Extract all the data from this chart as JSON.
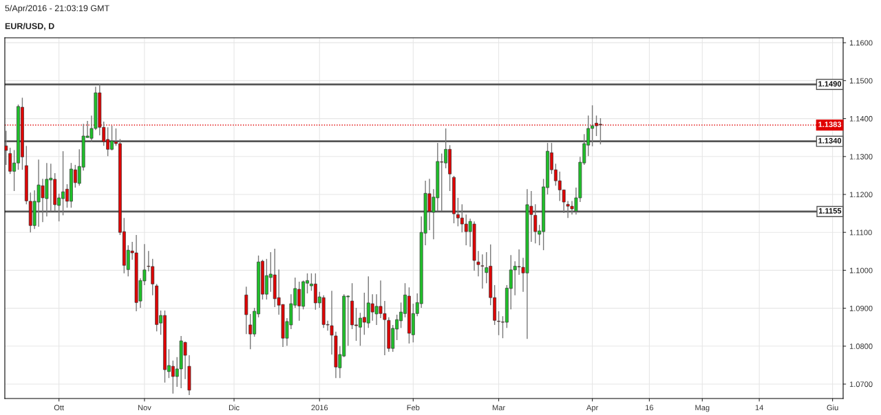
{
  "chart_data": {
    "type": "candlestick",
    "title": "EUR/USD, D",
    "subtitle": "5/Apr/2016 - 21:03:19 GMT",
    "categories": [
      null,
      null,
      null,
      null,
      null,
      null,
      null,
      null,
      null,
      null,
      null,
      null,
      null,
      "Ott",
      null,
      null,
      null,
      null,
      null,
      null,
      null,
      null,
      null,
      null,
      null,
      null,
      null,
      null,
      null,
      null,
      null,
      null,
      null,
      null,
      "Nov",
      null,
      null,
      null,
      null,
      null,
      null,
      null,
      null,
      null,
      null,
      null,
      null,
      null,
      null,
      null,
      null,
      null,
      null,
      null,
      null,
      null,
      "Dic",
      null,
      null,
      null,
      null,
      null,
      null,
      null,
      null,
      null,
      null,
      null,
      null,
      null,
      null,
      null,
      null,
      null,
      null,
      null,
      null,
      "2016",
      null,
      null,
      null,
      null,
      null,
      null,
      null,
      null,
      null,
      null,
      null,
      null,
      null,
      null,
      null,
      null,
      null,
      null,
      null,
      null,
      null,
      null,
      "Feb",
      null,
      null,
      null,
      null,
      null,
      null,
      null,
      null,
      null,
      null,
      null,
      null,
      null,
      null,
      null,
      null,
      null,
      null,
      null,
      null,
      "Mar",
      null,
      null,
      null,
      null,
      null,
      null,
      null,
      null,
      null,
      null,
      null,
      null,
      null,
      null,
      null,
      null,
      null,
      null,
      null,
      null,
      null,
      null,
      "Apr",
      null,
      null,
      null,
      null,
      null,
      null,
      null,
      null,
      null,
      null,
      null,
      null,
      null,
      "16",
      null,
      null,
      null,
      null,
      null,
      null,
      null,
      null,
      null,
      null,
      null,
      null,
      "Mag",
      null,
      null,
      null,
      null,
      null,
      null,
      null,
      null,
      null,
      null,
      null,
      null,
      null,
      "14",
      null,
      null,
      null,
      null,
      null,
      null,
      null,
      null,
      null,
      null,
      null,
      null,
      null,
      null,
      null,
      null,
      null,
      "Giu",
      null,
      null
    ],
    "ohlc": [
      [
        1.1328,
        1.1368,
        1.1278,
        1.1316
      ],
      [
        1.1308,
        1.1323,
        1.1254,
        1.1261
      ],
      [
        1.1261,
        1.1317,
        1.1209,
        1.1283
      ],
      [
        1.1283,
        1.1437,
        1.1265,
        1.1432
      ],
      [
        1.143,
        1.1455,
        1.1265,
        1.1299
      ],
      [
        1.1276,
        1.1328,
        1.1174,
        1.1183
      ],
      [
        1.1182,
        1.1205,
        1.11,
        1.1118
      ],
      [
        1.1118,
        1.1211,
        1.1109,
        1.1182
      ],
      [
        1.118,
        1.1292,
        1.1115,
        1.1225
      ],
      [
        1.1223,
        1.1241,
        1.1127,
        1.1191
      ],
      [
        1.1189,
        1.1283,
        1.1142,
        1.124
      ],
      [
        1.1238,
        1.1281,
        1.1155,
        1.1243
      ],
      [
        1.124,
        1.1256,
        1.1155,
        1.1173
      ],
      [
        1.1171,
        1.1202,
        1.1129,
        1.1191
      ],
      [
        1.1189,
        1.1314,
        1.1145,
        1.1207
      ],
      [
        1.1214,
        1.1227,
        1.1165,
        1.1182
      ],
      [
        1.1182,
        1.1283,
        1.1165,
        1.1267
      ],
      [
        1.1265,
        1.1278,
        1.1218,
        1.1231
      ],
      [
        1.1229,
        1.1319,
        1.1223,
        1.1274
      ],
      [
        1.1272,
        1.1386,
        1.1263,
        1.1354
      ],
      [
        1.135,
        1.1394,
        1.135,
        1.1354
      ],
      [
        1.1348,
        1.1408,
        1.1339,
        1.1374
      ],
      [
        1.1374,
        1.1484,
        1.137,
        1.1468
      ],
      [
        1.1468,
        1.1491,
        1.1356,
        1.1377
      ],
      [
        1.1377,
        1.1392,
        1.1328,
        1.1339
      ],
      [
        1.1345,
        1.1377,
        1.1301,
        1.1319
      ],
      [
        1.1319,
        1.1381,
        1.1316,
        1.1341
      ],
      [
        1.1339,
        1.1374,
        1.1328,
        1.1334
      ],
      [
        1.1334,
        1.1346,
        1.1093,
        1.11
      ],
      [
        1.1102,
        1.1138,
        1.0992,
        1.1013
      ],
      [
        1.1002,
        1.1066,
        1.0984,
        1.1053
      ],
      [
        1.1051,
        1.1075,
        1.1028,
        1.1046
      ],
      [
        1.1046,
        1.1093,
        1.0892,
        1.0915
      ],
      [
        1.0919,
        1.0979,
        1.0901,
        1.0973
      ],
      [
        1.0972,
        1.1069,
        1.0961,
        1.1001
      ],
      [
        1.1011,
        1.1051,
        1.0997,
        1.101
      ],
      [
        1.101,
        1.103,
        1.0934,
        1.0964
      ],
      [
        1.0959,
        1.0964,
        1.0839,
        1.0857
      ],
      [
        1.0861,
        1.0894,
        1.083,
        1.0881
      ],
      [
        1.0881,
        1.0894,
        1.0704,
        1.0738
      ],
      [
        1.0733,
        1.0792,
        1.0716,
        1.0749
      ],
      [
        1.0747,
        1.0762,
        1.0675,
        1.072
      ],
      [
        1.072,
        1.0771,
        1.0693,
        1.074
      ],
      [
        1.074,
        1.0827,
        1.0689,
        1.0814
      ],
      [
        1.081,
        1.0812,
        1.0713,
        1.0776
      ],
      [
        1.0747,
        1.0776,
        1.0671,
        1.0684
      ],
      null,
      null,
      null,
      null,
      null,
      null,
      null,
      null,
      null,
      null,
      null,
      null,
      null,
      [
        1.0935,
        1.0957,
        1.0832,
        1.0883
      ],
      [
        1.0856,
        1.0885,
        1.0792,
        1.0832
      ],
      [
        1.0832,
        1.0901,
        1.0825,
        1.0892
      ],
      [
        1.0885,
        1.1039,
        1.0876,
        1.1022
      ],
      [
        1.1024,
        1.1028,
        1.0923,
        1.0937
      ],
      [
        1.0937,
        1.103,
        1.0923,
        1.0986
      ],
      [
        1.0981,
        1.1048,
        1.0943,
        1.099
      ],
      [
        1.0988,
        1.1057,
        1.0903,
        1.0925
      ],
      [
        1.0928,
        1.1002,
        1.0883,
        1.0908
      ],
      [
        1.091,
        1.091,
        1.0798,
        1.0821
      ],
      [
        1.0821,
        1.0874,
        1.0801,
        1.0865
      ],
      [
        1.0856,
        1.0937,
        1.0845,
        1.0912
      ],
      [
        1.0908,
        1.0981,
        1.0901,
        1.0952
      ],
      [
        1.095,
        1.097,
        1.0867,
        1.0906
      ],
      [
        1.0905,
        1.0973,
        1.0897,
        1.097
      ],
      [
        1.0966,
        1.0992,
        1.0939,
        1.0973
      ],
      [
        1.0959,
        1.0992,
        1.0946,
        1.0964
      ],
      [
        1.0964,
        1.0992,
        1.0896,
        1.0914
      ],
      [
        1.0914,
        1.0943,
        1.0901,
        1.093
      ],
      [
        1.0928,
        1.0934,
        1.0848,
        1.0857
      ],
      [
        1.0857,
        1.0867,
        1.0841,
        1.0856
      ],
      [
        1.0854,
        1.0946,
        1.0778,
        1.0829
      ],
      [
        1.0827,
        1.0838,
        1.0716,
        1.0745
      ],
      [
        1.0743,
        1.08,
        1.0716,
        1.0778
      ],
      [
        1.0774,
        1.0937,
        1.0771,
        1.0932
      ],
      [
        1.093,
        1.0934,
        1.0801,
        1.0932
      ],
      [
        1.0919,
        1.0966,
        1.0845,
        1.0856
      ],
      [
        1.0856,
        1.0901,
        1.0814,
        1.0854
      ],
      [
        1.085,
        1.0888,
        1.0801,
        1.0874
      ],
      [
        1.0876,
        1.0941,
        1.083,
        1.0863
      ],
      [
        1.0861,
        1.0984,
        1.0848,
        1.0914
      ],
      [
        1.0912,
        1.0937,
        1.0867,
        1.089
      ],
      [
        1.0885,
        1.0937,
        1.0856,
        1.0905
      ],
      [
        1.0905,
        1.0973,
        1.0874,
        1.0886
      ],
      [
        1.0886,
        1.0919,
        1.0776,
        1.087
      ],
      [
        1.0868,
        1.0876,
        1.0785,
        1.0794
      ],
      [
        1.0794,
        1.0856,
        1.0785,
        1.0847
      ],
      [
        1.0845,
        1.0883,
        1.0816,
        1.087
      ],
      [
        1.0867,
        1.0915,
        1.0848,
        1.089
      ],
      [
        1.0886,
        1.0966,
        1.0876,
        1.0935
      ],
      [
        1.0932,
        1.0955,
        1.0807,
        1.0834
      ],
      [
        1.083,
        1.0912,
        1.081,
        1.0886
      ],
      [
        1.0886,
        1.0939,
        1.0879,
        1.0915
      ],
      [
        1.0912,
        1.1142,
        1.0901,
        1.11
      ],
      [
        1.1098,
        1.1236,
        1.1066,
        1.1203
      ],
      [
        1.1202,
        1.1241,
        1.1106,
        1.1155
      ],
      [
        1.1153,
        1.1214,
        1.1082,
        1.1193
      ],
      [
        1.1191,
        1.1336,
        1.1156,
        1.1287
      ],
      [
        1.1286,
        1.1308,
        1.1156,
        1.1285
      ],
      [
        1.1283,
        1.1374,
        1.1269,
        1.1319
      ],
      [
        1.1319,
        1.133,
        1.1209,
        1.1254
      ],
      [
        1.1245,
        1.1249,
        1.1124,
        1.1149
      ],
      [
        1.1147,
        1.1191,
        1.1116,
        1.1138
      ],
      [
        1.1138,
        1.1174,
        1.11,
        1.1122
      ],
      [
        1.1122,
        1.1147,
        1.1066,
        1.1102
      ],
      [
        1.1102,
        1.1136,
        1.1062,
        1.1129
      ],
      [
        1.1122,
        1.1129,
        1.0999,
        1.1026
      ],
      [
        1.1022,
        1.1051,
        1.0984,
        1.1015
      ],
      [
        1.1012,
        1.1042,
        1.0952,
        1.1011
      ],
      [
        1.0994,
        1.1048,
        1.0966,
        1.1007
      ],
      [
        1.1011,
        1.1068,
        1.0908,
        1.0928
      ],
      [
        1.0928,
        1.0961,
        1.0856,
        1.0868
      ],
      [
        1.0866,
        1.0892,
        1.0829,
        1.0865
      ],
      [
        1.0864,
        1.0879,
        1.0821,
        1.0863
      ],
      [
        1.0863,
        1.0961,
        1.0848,
        1.0953
      ],
      [
        1.0952,
        1.104,
        1.0897,
        1.1001
      ],
      [
        1.1001,
        1.1024,
        1.0934,
        1.1011
      ],
      [
        1.101,
        1.1055,
        1.0988,
        1.1009
      ],
      [
        1.1008,
        1.1033,
        1.0943,
        1.0993
      ],
      [
        1.0993,
        1.1214,
        1.0819,
        1.1173
      ],
      [
        1.1169,
        1.1209,
        1.1075,
        1.1147
      ],
      [
        1.1145,
        1.1174,
        1.1071,
        1.1102
      ],
      [
        1.1095,
        1.112,
        1.1066,
        1.1104
      ],
      [
        1.1102,
        1.1241,
        1.1053,
        1.122
      ],
      [
        1.1218,
        1.1336,
        1.12,
        1.1314
      ],
      [
        1.131,
        1.1336,
        1.1254,
        1.1265
      ],
      [
        1.1265,
        1.1281,
        1.1223,
        1.1236
      ],
      [
        1.1236,
        1.126,
        1.1183,
        1.1212
      ],
      [
        1.1212,
        1.1212,
        1.1151,
        1.118
      ],
      [
        1.1174,
        1.1183,
        1.1138,
        1.1169
      ],
      [
        1.1169,
        1.1183,
        1.1147,
        1.1162
      ],
      [
        1.1156,
        1.1218,
        1.1147,
        1.1191
      ],
      [
        1.1191,
        1.1299,
        1.118,
        1.1285
      ],
      [
        1.1283,
        1.1359,
        1.1278,
        1.1334
      ],
      [
        1.133,
        1.1408,
        1.1301,
        1.1374
      ],
      [
        1.1374,
        1.1435,
        1.1327,
        1.1381
      ],
      [
        1.1388,
        1.1408,
        1.1354,
        1.1381
      ],
      [
        1.1385,
        1.1401,
        1.1332,
        1.1383
      ],
      null,
      null,
      null,
      null,
      null,
      null,
      null,
      null,
      null,
      null,
      null,
      null,
      null,
      null,
      null,
      null,
      null,
      null,
      null,
      null,
      null,
      null,
      null,
      null,
      null,
      null,
      null,
      null,
      null,
      null,
      null,
      null,
      null,
      null,
      null,
      null,
      null,
      null,
      null,
      null,
      null,
      null,
      null,
      null,
      null,
      null,
      null,
      null,
      null,
      null,
      null,
      null,
      null,
      null,
      null,
      null,
      null,
      null,
      null
    ],
    "colors": [
      "#e00000",
      "#e00000",
      "#1fc12a",
      "#1fc12a",
      "#e00000",
      "#e00000",
      "#e00000",
      "#1fc12a",
      "#1fc12a",
      "#e00000",
      "#1fc12a",
      "#1fc12a",
      "#e00000",
      "#1fc12a",
      "#1fc12a",
      "#e00000",
      "#1fc12a",
      "#e00000",
      "#1fc12a",
      "#1fc12a",
      "#1fc12a",
      "#1fc12a",
      "#1fc12a",
      "#e00000",
      "#e00000",
      "#e00000",
      "#1fc12a",
      "#e00000",
      "#e00000",
      "#e00000",
      "#1fc12a",
      "#e00000",
      "#e00000",
      "#1fc12a",
      "#1fc12a",
      "#e00000",
      "#e00000",
      "#e00000",
      "#1fc12a",
      "#e00000",
      "#1fc12a",
      "#e00000",
      "#1fc12a",
      "#1fc12a",
      "#e00000",
      "#e00000",
      null,
      null,
      null,
      null,
      null,
      null,
      null,
      null,
      null,
      null,
      null,
      null,
      null,
      "#e00000",
      "#e00000",
      "#1fc12a",
      "#1fc12a",
      "#e00000",
      "#1fc12a",
      "#1fc12a",
      "#e00000",
      "#e00000",
      "#e00000",
      "#1fc12a",
      "#1fc12a",
      "#1fc12a",
      "#e00000",
      "#1fc12a",
      "#1fc12a",
      "#1fc12a",
      "#e00000",
      "#1fc12a",
      "#e00000",
      "#e00000",
      "#e00000",
      "#e00000",
      "#1fc12a",
      "#1fc12a",
      "#1fc12a",
      "#e00000",
      "#e00000",
      "#1fc12a",
      "#e00000",
      "#1fc12a",
      "#e00000",
      "#1fc12a",
      "#e00000",
      "#e00000",
      "#e00000",
      "#1fc12a",
      "#1fc12a",
      "#1fc12a",
      "#1fc12a",
      "#e00000",
      "#1fc12a",
      "#1fc12a",
      "#1fc12a",
      "#1fc12a",
      "#e00000",
      "#1fc12a",
      "#1fc12a",
      "#e00000",
      "#1fc12a",
      "#e00000",
      "#e00000",
      "#e00000",
      "#e00000",
      "#e00000",
      "#1fc12a",
      "#e00000",
      "#e00000",
      "#e00000",
      "#1fc12a",
      "#e00000",
      "#e00000",
      "#e00000",
      "#e00000",
      "#1fc12a",
      "#1fc12a",
      "#1fc12a",
      "#e00000",
      "#e00000",
      "#1fc12a",
      "#e00000",
      "#e00000",
      "#1fc12a",
      "#1fc12a",
      "#1fc12a",
      "#e00000",
      "#e00000",
      "#e00000",
      "#e00000",
      "#e00000",
      "#e00000",
      "#1fc12a",
      "#1fc12a",
      "#1fc12a",
      "#1fc12a",
      "#1fc12a",
      "#e00000",
      "#e00000",
      null,
      null,
      null,
      null,
      null,
      null,
      null,
      null,
      null,
      null,
      null,
      null,
      null,
      null,
      null,
      null,
      null,
      null,
      null,
      null,
      null,
      null,
      null,
      null,
      null,
      null,
      null,
      null,
      null,
      null,
      null,
      null,
      null,
      null,
      null,
      null,
      null,
      null,
      null,
      null,
      null,
      null,
      null,
      null,
      null,
      null,
      null,
      null,
      null,
      null,
      null,
      null,
      null,
      null,
      null,
      null,
      null,
      null,
      null
    ],
    "ylim": [
      1.0662,
      1.1613
    ],
    "yticks": [
      {
        "value": 1.07,
        "label": "1.0700"
      },
      {
        "value": 1.08,
        "label": "1.0800"
      },
      {
        "value": 1.09,
        "label": "1.0900"
      },
      {
        "value": 1.1,
        "label": "1.1000"
      },
      {
        "value": 1.11,
        "label": "1.1100"
      },
      {
        "value": 1.12,
        "label": "1.1200"
      },
      {
        "value": 1.13,
        "label": "1.1300"
      },
      {
        "value": 1.14,
        "label": "1.1400"
      },
      {
        "value": 1.15,
        "label": "1.1500"
      },
      {
        "value": 1.16,
        "label": "1.1600"
      }
    ],
    "ref_lines": [
      {
        "axis": "y",
        "value": 1.149,
        "label": "1.1490",
        "color": "#555555",
        "line_style": "solid"
      },
      {
        "axis": "y",
        "value": 1.134,
        "label": "1.1340",
        "color": "#555555",
        "line_style": "solid"
      },
      {
        "axis": "y",
        "value": 1.1155,
        "label": "1.1155",
        "color": "#555555",
        "line_style": "solid"
      },
      {
        "axis": "y",
        "value": 1.1383,
        "label": "1.1383",
        "color": "#e00000",
        "line_style": "dotted"
      }
    ],
    "grid": true
  }
}
